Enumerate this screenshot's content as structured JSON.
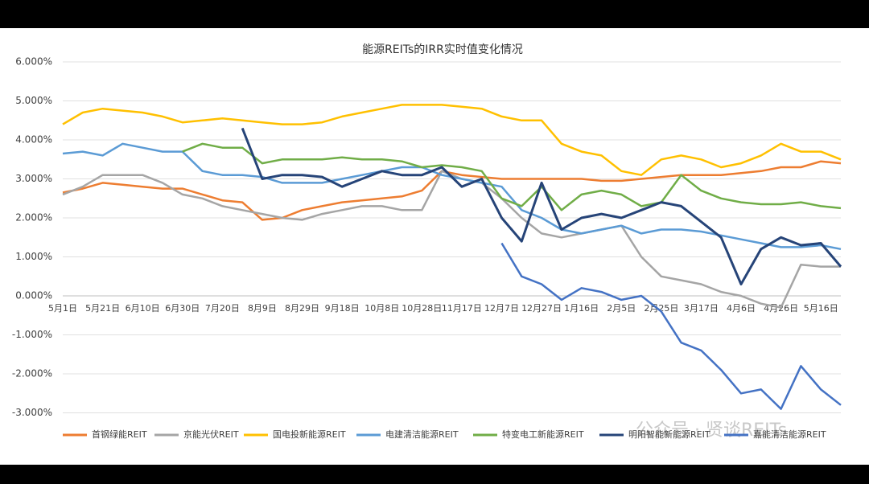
{
  "chart_data": {
    "type": "line",
    "title": "能源REITs的IRR实时值变化情况",
    "categories": [
      "5月1日",
      null,
      "5月21日",
      null,
      "6月10日",
      null,
      "6月30日",
      null,
      "7月20日",
      null,
      "8月9日",
      null,
      "8月29日",
      null,
      "9月18日",
      null,
      "10月8日",
      null,
      "10月28日",
      null,
      "11月17日",
      null,
      "12月7日",
      null,
      "12月27日",
      null,
      "1月16日",
      null,
      "2月5日",
      null,
      "2月25日",
      null,
      "3月17日",
      null,
      "4月6日",
      null,
      "4月26日",
      null,
      "5月16日",
      null
    ],
    "ylim": [
      -3,
      6
    ],
    "yticks": [
      {
        "value": 6,
        "label": "6.000%"
      },
      {
        "value": 5,
        "label": "5.000%"
      },
      {
        "value": 4,
        "label": "4.000%"
      },
      {
        "value": 3,
        "label": "3.000%"
      },
      {
        "value": 2,
        "label": "2.000%"
      },
      {
        "value": 1,
        "label": "1.000%"
      },
      {
        "value": 0,
        "label": "0.000%"
      },
      {
        "value": -1,
        "label": "-1.000%"
      },
      {
        "value": -2,
        "label": "-2.000%"
      },
      {
        "value": -3,
        "label": "-3.000%"
      }
    ],
    "grid": true,
    "legend": "bottom",
    "series": [
      {
        "name": "首钢绿能REIT",
        "color": "#ed7d31",
        "values": [
          2.65,
          2.75,
          2.9,
          2.85,
          2.8,
          2.75,
          2.75,
          2.6,
          2.45,
          2.4,
          1.95,
          2.0,
          2.2,
          2.3,
          2.4,
          2.45,
          2.5,
          2.55,
          2.7,
          3.2,
          3.1,
          3.05,
          3.0,
          3.0,
          3.0,
          3.0,
          3.0,
          2.95,
          2.95,
          3.0,
          3.05,
          3.1,
          3.1,
          3.1,
          3.15,
          3.2,
          3.3,
          3.3,
          3.45,
          3.4
        ]
      },
      {
        "name": "京能光伏REIT",
        "color": "#a5a5a5",
        "values": [
          2.6,
          2.8,
          3.1,
          3.1,
          3.1,
          2.9,
          2.6,
          2.5,
          2.3,
          2.2,
          2.1,
          2.0,
          1.95,
          2.1,
          2.2,
          2.3,
          2.3,
          2.2,
          2.2,
          3.2,
          3.0,
          2.9,
          2.5,
          2.0,
          1.6,
          1.5,
          1.6,
          1.7,
          1.8,
          1.0,
          0.5,
          0.4,
          0.3,
          0.1,
          0.0,
          -0.2,
          -0.3,
          0.8,
          0.75,
          0.75
        ]
      },
      {
        "name": "国电投新能源REIT",
        "color": "#ffc000",
        "values": [
          4.4,
          4.7,
          4.8,
          4.75,
          4.7,
          4.6,
          4.45,
          4.5,
          4.55,
          4.5,
          4.45,
          4.4,
          4.4,
          4.45,
          4.6,
          4.7,
          4.8,
          4.9,
          4.9,
          4.9,
          4.85,
          4.8,
          4.6,
          4.5,
          4.5,
          3.9,
          3.7,
          3.6,
          3.2,
          3.1,
          3.5,
          3.6,
          3.5,
          3.3,
          3.4,
          3.6,
          3.9,
          3.7,
          3.7,
          3.5
        ]
      },
      {
        "name": "电建清洁能源REIT",
        "color": "#5b9bd5",
        "values": [
          3.65,
          3.7,
          3.6,
          3.9,
          3.8,
          3.7,
          3.7,
          3.2,
          3.1,
          3.1,
          3.05,
          2.9,
          2.9,
          2.9,
          3.0,
          3.1,
          3.2,
          3.3,
          3.3,
          3.1,
          3.0,
          2.9,
          2.8,
          2.2,
          2.0,
          1.7,
          1.6,
          1.7,
          1.8,
          1.6,
          1.7,
          1.7,
          1.65,
          1.55,
          1.45,
          1.35,
          1.25,
          1.25,
          1.3,
          1.2
        ]
      },
      {
        "name": "特变电工新能源REIT",
        "color": "#70ad47",
        "values": [
          null,
          null,
          null,
          null,
          null,
          null,
          3.7,
          3.9,
          3.8,
          3.8,
          3.4,
          3.5,
          3.5,
          3.5,
          3.55,
          3.5,
          3.5,
          3.45,
          3.3,
          3.35,
          3.3,
          3.2,
          2.5,
          2.3,
          2.8,
          2.2,
          2.6,
          2.7,
          2.6,
          2.3,
          2.4,
          3.1,
          2.7,
          2.5,
          2.4,
          2.35,
          2.35,
          2.4,
          2.3,
          2.25
        ]
      },
      {
        "name": "明阳智能新能源REIT",
        "color": "#264478",
        "values": [
          null,
          null,
          null,
          null,
          null,
          null,
          null,
          null,
          null,
          4.3,
          3.0,
          3.1,
          3.1,
          3.05,
          2.8,
          3.0,
          3.2,
          3.1,
          3.1,
          3.3,
          2.8,
          3.0,
          2.0,
          1.4,
          2.9,
          1.7,
          2.0,
          2.1,
          2.0,
          2.2,
          2.4,
          2.3,
          1.9,
          1.5,
          0.3,
          1.2,
          1.5,
          1.3,
          1.35,
          0.75
        ]
      },
      {
        "name": "嘉能清洁能源REIT",
        "color": "#4472c4",
        "values": [
          null,
          null,
          null,
          null,
          null,
          null,
          null,
          null,
          null,
          null,
          null,
          null,
          null,
          null,
          null,
          null,
          null,
          null,
          null,
          null,
          null,
          null,
          1.35,
          0.5,
          0.3,
          -0.1,
          0.2,
          0.1,
          -0.1,
          0.0,
          -0.4,
          -1.2,
          -1.4,
          -1.9,
          -2.5,
          -2.4,
          -2.9,
          -1.8,
          -2.4,
          -2.8
        ]
      }
    ]
  },
  "watermark": "公众号 · 贤谈REITs"
}
